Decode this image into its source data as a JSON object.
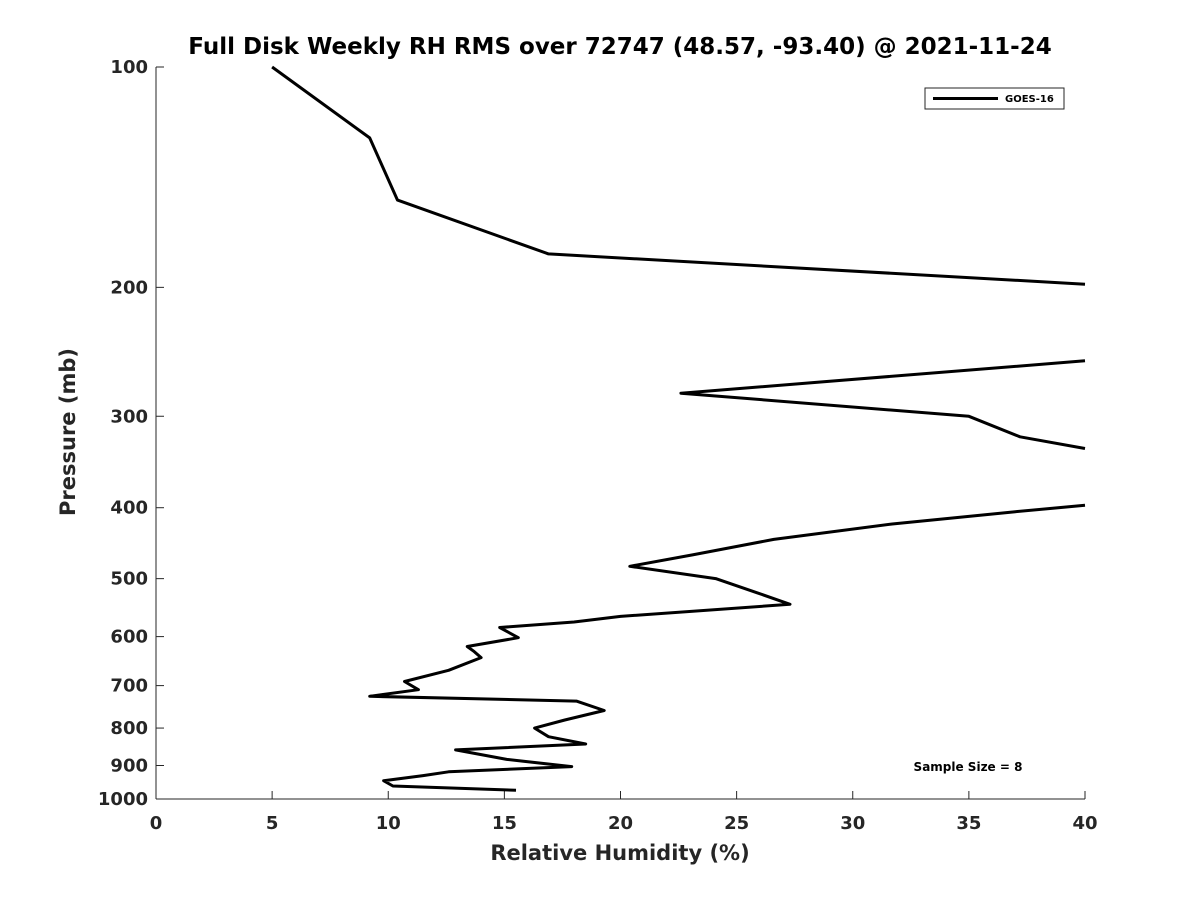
{
  "chart_data": {
    "type": "line",
    "title": "Full Disk Weekly RH RMS over 72747 (48.57, -93.40) @ 2021-11-24",
    "xlabel": "Relative Humidity (%)",
    "ylabel": "Pressure (mb)",
    "xlim": [
      0,
      40
    ],
    "ylim": [
      100,
      1000
    ],
    "y_scale": "log",
    "y_reversed": true,
    "grid": false,
    "legend_position": "top-right",
    "x_ticks": [
      0,
      5,
      10,
      15,
      20,
      25,
      30,
      35,
      40
    ],
    "y_ticks": [
      100,
      200,
      300,
      400,
      500,
      600,
      700,
      800,
      900,
      1000
    ],
    "series": [
      {
        "name": "GOES-16",
        "color": "#000000",
        "points": [
          [
            5.0,
            100
          ],
          [
            9.2,
            125
          ],
          [
            10.4,
            152
          ],
          [
            16.9,
            180
          ],
          [
            40.0,
            198
          ],
          [
            null,
            252
          ],
          [
            40.0,
            252
          ],
          [
            22.6,
            279
          ],
          [
            35.0,
            300
          ],
          [
            37.2,
            320
          ],
          [
            40.0,
            332
          ],
          [
            null,
            397
          ],
          [
            40.0,
            397
          ],
          [
            37.0,
            405
          ],
          [
            31.7,
            421
          ],
          [
            26.6,
            442
          ],
          [
            23.1,
            464
          ],
          [
            20.4,
            481
          ],
          [
            24.1,
            500
          ],
          [
            25.9,
            523
          ],
          [
            27.3,
            542
          ],
          [
            20.0,
            563
          ],
          [
            18.0,
            573
          ],
          [
            14.8,
            583
          ],
          [
            15.6,
            602
          ],
          [
            13.4,
            619
          ],
          [
            13.7,
            629
          ],
          [
            14.0,
            641
          ],
          [
            12.6,
            667
          ],
          [
            10.7,
            691
          ],
          [
            11.3,
            709
          ],
          [
            9.2,
            724
          ],
          [
            18.1,
            735
          ],
          [
            19.3,
            757
          ],
          [
            17.6,
            780
          ],
          [
            16.3,
            800
          ],
          [
            16.9,
            822
          ],
          [
            18.5,
            841
          ],
          [
            12.9,
            857
          ],
          [
            15.1,
            883
          ],
          [
            17.9,
            903
          ],
          [
            12.6,
            918
          ],
          [
            11.5,
            929
          ],
          [
            9.8,
            944
          ],
          [
            10.2,
            960
          ],
          [
            15.5,
            973
          ]
        ]
      }
    ],
    "annotations": [
      "Sample Size = 8"
    ]
  }
}
